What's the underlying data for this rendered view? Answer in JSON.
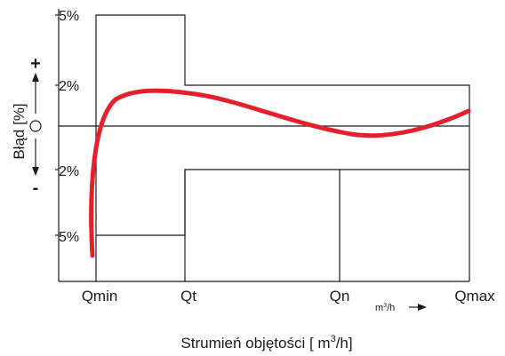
{
  "diagram": {
    "y_labels": {
      "top_5": "5%",
      "upper_2": "2%",
      "lower_2": "2%",
      "bottom_5": "5%"
    },
    "axis_title": "Błąd [%]",
    "plus_sign": "+",
    "minus_sign": "-",
    "x_labels": {
      "qmin": "Qmin",
      "qt": "Qt",
      "qn": "Qn",
      "qmax": "Qmax"
    },
    "unit_arrow": {
      "base": "m",
      "sup": "3",
      "rest": "/h"
    },
    "caption": {
      "prefix": "Strumień objętości [ m",
      "sup": "3",
      "suffix": "/h]"
    },
    "colors": {
      "curve": "#e4202a",
      "lines": "#1a1a1a"
    }
  }
}
